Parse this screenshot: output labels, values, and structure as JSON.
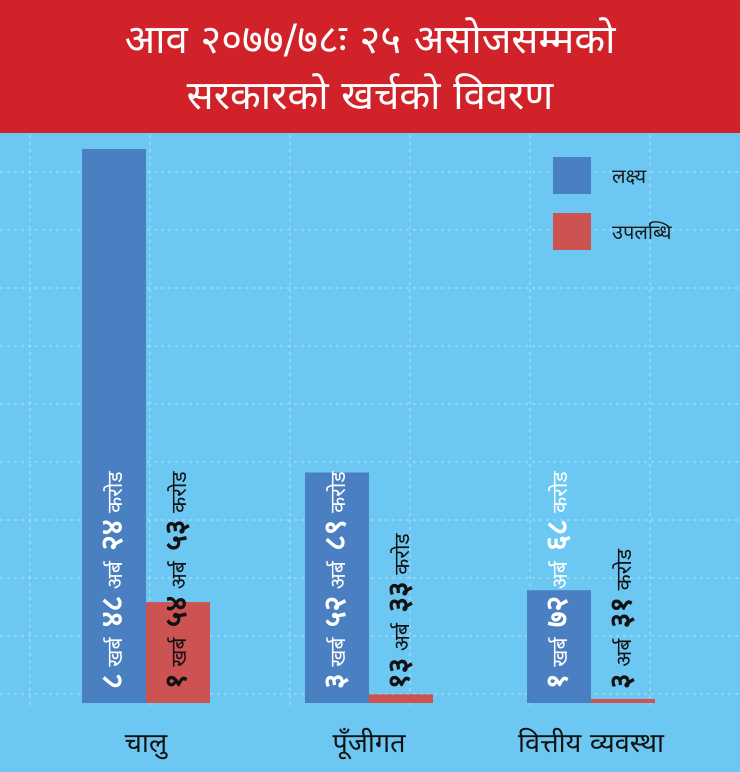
{
  "header": {
    "title_line1": "आव २०७७/७८ः २५ असोजसम्मको",
    "title_line2": "सरकारको खर्चको विवरण"
  },
  "colors": {
    "background": "#6cc8f2",
    "header": "#d12229",
    "target": "#4a7fc1",
    "achievement": "#cd5353"
  },
  "chart_data": {
    "type": "bar",
    "title": "आव २०७७/७८ः २५ असोजसम्मको सरकारको खर्चको विवरण",
    "unit": "करोड",
    "categories": [
      "चालु",
      "पूँजीगत",
      "वित्तीय व्यवस्था"
    ],
    "series": [
      {
        "name": "लक्ष्य",
        "values": [
          84824,
          35289,
          17268
        ],
        "labels": [
          {
            "n1": "८",
            "w1": "खर्ब",
            "n2": "४८",
            "w2": "अर्ब",
            "n3": "२४",
            "w3": "करोड"
          },
          {
            "n1": "३",
            "w1": "खर्ब",
            "n2": "५२",
            "w2": "अर्ब",
            "n3": "८९",
            "w3": "करोड"
          },
          {
            "n1": "१",
            "w1": "खर्ब",
            "n2": "७२",
            "w2": "अर्ब",
            "n3": "६८",
            "w3": "करोड"
          }
        ]
      },
      {
        "name": "उपलब्धि",
        "values": [
          15453,
          1333,
          331
        ],
        "labels": [
          {
            "n1": "१",
            "w1": "खर्ब",
            "n2": "५४",
            "w2": "अर्ब",
            "n3": "५३",
            "w3": "करोड"
          },
          {
            "n1": "",
            "w1": "",
            "n2": "१३",
            "w2": "अर्ब",
            "n3": "३३",
            "w3": "करोड"
          },
          {
            "n1": "",
            "w1": "",
            "n2": "३",
            "w2": "अर्ब",
            "n3": "३१",
            "w3": "करोड"
          }
        ]
      }
    ],
    "grid": true,
    "legend_position": "top-right"
  }
}
